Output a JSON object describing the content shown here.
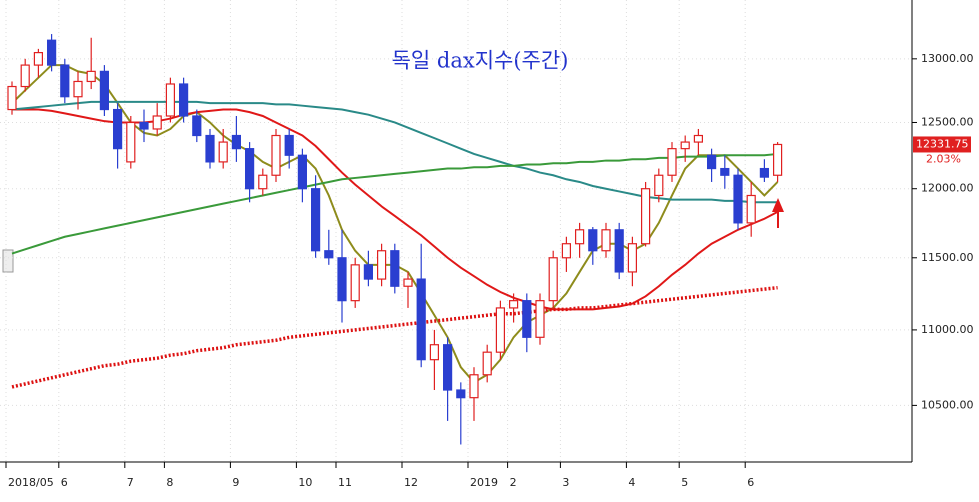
{
  "chart_data": {
    "type": "candlestick",
    "title": "독일 dax지수(주간)",
    "categories": [
      "2018/05",
      null,
      null,
      null,
      "6",
      null,
      null,
      null,
      null,
      "7",
      null,
      null,
      "8",
      null,
      null,
      null,
      null,
      "9",
      null,
      null,
      null,
      null,
      "10",
      null,
      null,
      "11",
      null,
      null,
      null,
      null,
      "12",
      null,
      null,
      null,
      null,
      "2019",
      null,
      null,
      "2",
      null,
      null,
      null,
      "3",
      null,
      null,
      null,
      null,
      "4",
      null,
      null,
      null,
      "5",
      null,
      null,
      null,
      null,
      "6",
      null,
      null
    ],
    "open": [
      12600,
      12780,
      12950,
      13150,
      12950,
      12700,
      12820,
      12900,
      12600,
      12200,
      12500,
      12450,
      12550,
      12800,
      12550,
      12400,
      12200,
      12400,
      12300,
      12000,
      12100,
      12400,
      12250,
      12000,
      11550,
      11500,
      11200,
      11450,
      11350,
      11550,
      11300,
      11350,
      10800,
      10900,
      10600,
      10550,
      10700,
      10850,
      11150,
      11200,
      10950,
      11200,
      11500,
      11600,
      11700,
      11550,
      11700,
      11400,
      11600,
      11950,
      12100,
      12300,
      12350,
      12250,
      12150,
      12100,
      11750,
      12150,
      12100
    ],
    "high": [
      12820,
      13000,
      13080,
      13200,
      13000,
      12900,
      13170,
      12950,
      12650,
      12550,
      12600,
      12650,
      12850,
      12850,
      12600,
      12450,
      12450,
      12550,
      12350,
      12150,
      12450,
      12450,
      12300,
      12100,
      11700,
      11700,
      11500,
      11550,
      11600,
      11600,
      11400,
      11600,
      11000,
      10950,
      10650,
      10750,
      10900,
      11200,
      11250,
      11250,
      11250,
      11550,
      11650,
      11750,
      11720,
      11750,
      11750,
      11650,
      12050,
      12150,
      12350,
      12400,
      12450,
      12300,
      12250,
      12150,
      12050,
      12220,
      12350
    ],
    "low": [
      12560,
      12740,
      12850,
      12900,
      12650,
      12600,
      12760,
      12550,
      12150,
      12150,
      12350,
      12400,
      12500,
      12500,
      12350,
      12150,
      12150,
      12200,
      11900,
      11950,
      12050,
      12150,
      11900,
      11500,
      11450,
      11050,
      11150,
      11300,
      11300,
      11250,
      11150,
      10750,
      10600,
      10400,
      10250,
      10400,
      10650,
      10800,
      11050,
      10850,
      10900,
      11150,
      11400,
      11500,
      11450,
      11500,
      11350,
      11300,
      11580,
      11900,
      12050,
      12200,
      12250,
      12050,
      12000,
      11700,
      11650,
      12050,
      12050
    ],
    "close": [
      12780,
      12950,
      13050,
      12950,
      12700,
      12820,
      12900,
      12600,
      12300,
      12500,
      12450,
      12550,
      12800,
      12550,
      12400,
      12200,
      12350,
      12300,
      12000,
      12100,
      12400,
      12250,
      12000,
      11550,
      11500,
      11200,
      11450,
      11350,
      11550,
      11300,
      11350,
      10800,
      10900,
      10600,
      10550,
      10700,
      10850,
      11150,
      11200,
      10950,
      11200,
      11500,
      11600,
      11700,
      11550,
      11700,
      11400,
      11600,
      12000,
      12100,
      12300,
      12350,
      12400,
      12150,
      12100,
      11750,
      11950,
      12086,
      12331.75
    ],
    "up_color": "#e02020",
    "down_color": "#2a3fd0",
    "lines": [
      {
        "color": "#8e8c1c",
        "style": "solid",
        "values": [
          12650,
          12750,
          12850,
          12950,
          12950,
          12900,
          12880,
          12800,
          12650,
          12500,
          12420,
          12400,
          12450,
          12550,
          12580,
          12500,
          12400,
          12330,
          12280,
          12200,
          12150,
          12200,
          12250,
          12150,
          11950,
          11700,
          11550,
          11450,
          11450,
          11450,
          11400,
          11250,
          11100,
          10950,
          10750,
          10650,
          10700,
          10800,
          10950,
          11050,
          11100,
          11150,
          11250,
          11400,
          11550,
          11600,
          11600,
          11550,
          11600,
          11750,
          11950,
          12150,
          12250,
          12250,
          12250,
          12150,
          12050,
          11950,
          12050
        ]
      },
      {
        "color": "#e01818",
        "style": "solid",
        "values": [
          12600,
          12600,
          12600,
          12590,
          12570,
          12550,
          12530,
          12510,
          12500,
          12500,
          12500,
          12510,
          12530,
          12560,
          12580,
          12590,
          12600,
          12600,
          12580,
          12550,
          12500,
          12450,
          12400,
          12320,
          12220,
          12120,
          12030,
          11950,
          11870,
          11800,
          11730,
          11660,
          11580,
          11500,
          11430,
          11370,
          11310,
          11260,
          11220,
          11190,
          11160,
          11140,
          11140,
          11140,
          11140,
          11150,
          11160,
          11180,
          11230,
          11300,
          11380,
          11450,
          11530,
          11600,
          11650,
          11700,
          11740,
          11780,
          11830
        ]
      },
      {
        "color": "#2a8a88",
        "style": "solid",
        "values": [
          12600,
          12610,
          12620,
          12630,
          12640,
          12650,
          12660,
          12660,
          12660,
          12660,
          12660,
          12660,
          12660,
          12660,
          12660,
          12650,
          12650,
          12650,
          12650,
          12650,
          12640,
          12640,
          12630,
          12620,
          12610,
          12600,
          12580,
          12560,
          12530,
          12500,
          12460,
          12420,
          12380,
          12340,
          12300,
          12260,
          12230,
          12200,
          12170,
          12150,
          12120,
          12100,
          12070,
          12050,
          12020,
          12000,
          11980,
          11960,
          11940,
          11930,
          11920,
          11920,
          11920,
          11920,
          11910,
          11910,
          11900,
          11900,
          11900
        ]
      },
      {
        "color": "#3a9a3a",
        "style": "solid",
        "values": [
          11530,
          11560,
          11590,
          11620,
          11650,
          11670,
          11690,
          11710,
          11730,
          11750,
          11770,
          11790,
          11810,
          11830,
          11850,
          11870,
          11890,
          11910,
          11930,
          11950,
          11970,
          11990,
          12010,
          12030,
          12050,
          12070,
          12080,
          12090,
          12100,
          12110,
          12120,
          12130,
          12140,
          12150,
          12150,
          12160,
          12160,
          12170,
          12170,
          12180,
          12180,
          12190,
          12190,
          12200,
          12200,
          12210,
          12210,
          12220,
          12220,
          12230,
          12230,
          12240,
          12240,
          12240,
          12250,
          12250,
          12250,
          12250,
          12260
        ]
      },
      {
        "color": "#dd1111",
        "style": "dotted",
        "values": [
          10620,
          10640,
          10660,
          10680,
          10700,
          10720,
          10740,
          10760,
          10770,
          10790,
          10800,
          10810,
          10830,
          10840,
          10860,
          10870,
          10880,
          10900,
          10910,
          10920,
          10930,
          10950,
          10960,
          10970,
          10980,
          10990,
          11000,
          11010,
          11020,
          11030,
          11040,
          11050,
          11060,
          11070,
          11080,
          11090,
          11100,
          11110,
          11110,
          11120,
          11130,
          11140,
          11140,
          11150,
          11150,
          11160,
          11170,
          11180,
          11190,
          11200,
          11210,
          11220,
          11230,
          11240,
          11250,
          11260,
          11270,
          11280,
          11290
        ]
      }
    ],
    "ylim": [
      10140,
      13480
    ],
    "log": true,
    "grid": true,
    "yticks": [
      {
        "value": 10500,
        "label": "10500.00"
      },
      {
        "value": 11000,
        "label": "11000.00"
      },
      {
        "value": 11500,
        "label": "11500.00"
      },
      {
        "value": 12000,
        "label": "12000.00"
      },
      {
        "value": 12500,
        "label": "12500.00"
      },
      {
        "value": 13000,
        "label": "13000.00"
      }
    ],
    "change_label": "2.03%"
  }
}
